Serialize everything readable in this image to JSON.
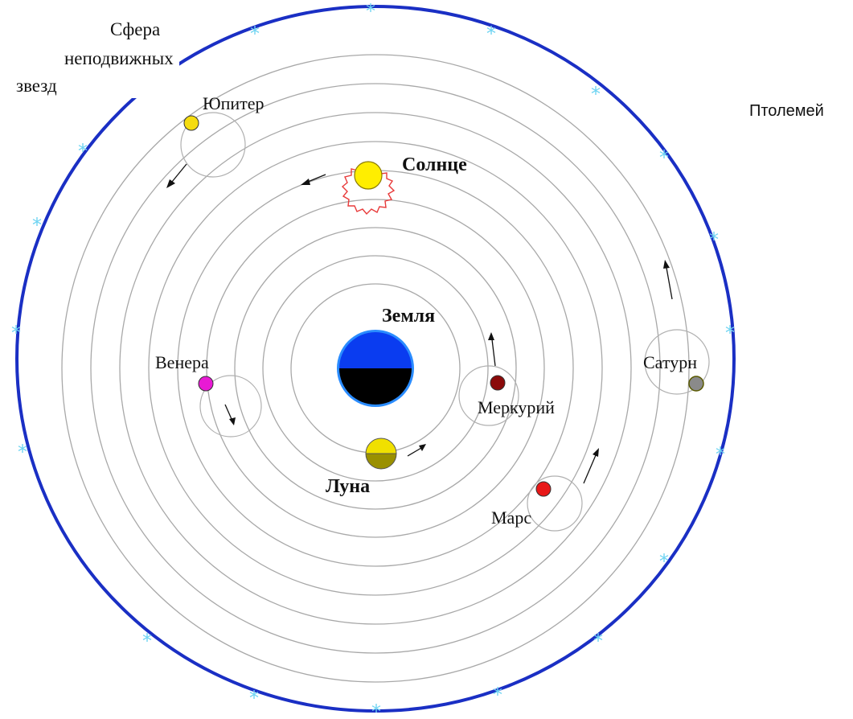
{
  "title": "Птолемей",
  "sphere_label": [
    "Сфера",
    "неподвижных",
    "звезд"
  ],
  "star_glyph": "*",
  "colors": {
    "outer_sphere": "#1a2fc4",
    "stars": "#6fd4f2",
    "earth_top": "#0a3cf0",
    "earth_bottom": "#000000",
    "earth_rim": "#2a8cff",
    "sun_fill": "#ffee00",
    "sun_corona": "#e83a3a",
    "moon_top": "#f0e000",
    "moon_bottom": "#9a9000"
  },
  "bodies": {
    "earth": {
      "label": "Земля"
    },
    "moon": {
      "label": "Луна"
    },
    "mercury": {
      "label": "Меркурий",
      "color": "#8b0a0a"
    },
    "venus": {
      "label": "Венера",
      "color": "#e81ad4"
    },
    "sun": {
      "label": "Солнце"
    },
    "mars": {
      "label": "Марс",
      "color": "#e81818"
    },
    "jupiter": {
      "label": "Юпитер",
      "color": "#f5dc10"
    },
    "saturn": {
      "label": "Сатурн",
      "color": "#8a8a8a"
    }
  }
}
